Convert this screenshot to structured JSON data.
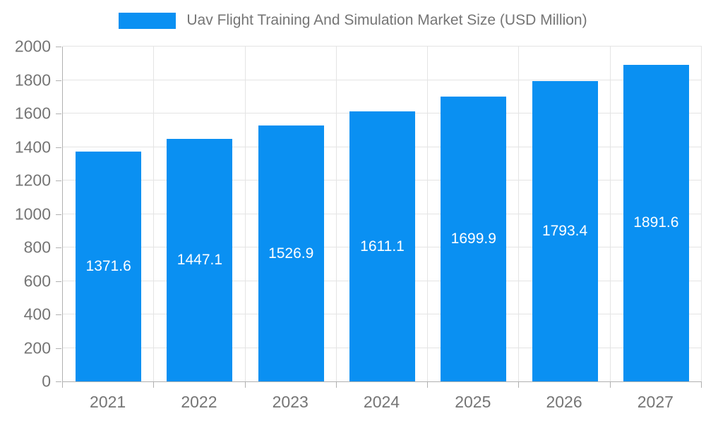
{
  "legend": {
    "label": "Uav Flight Training And Simulation Market Size (USD Million)"
  },
  "chart_data": {
    "type": "bar",
    "title": "Uav Flight Training And Simulation Market Size (USD Million)",
    "categories": [
      "2021",
      "2022",
      "2023",
      "2024",
      "2025",
      "2026",
      "2027"
    ],
    "series": [
      {
        "name": "Uav Flight Training And Simulation Market Size (USD Million)",
        "values": [
          1371.6,
          1447.1,
          1526.9,
          1611.1,
          1699.9,
          1793.4,
          1891.6
        ]
      }
    ],
    "value_labels": [
      "1371.6",
      "1447.1",
      "1526.9",
      "1611.1",
      "1699.9",
      "1793.4",
      "1891.6"
    ],
    "xlabel": "",
    "ylabel": "",
    "ylim": [
      0,
      2000
    ],
    "ytick_step": 200,
    "yticks": [
      0,
      200,
      400,
      600,
      800,
      1000,
      1200,
      1400,
      1600,
      1800,
      2000
    ],
    "grid": true,
    "legend_position": "top"
  },
  "colors": {
    "bar": "#0a90f2",
    "grid": "#e4e4e4",
    "axis": "#b0b0b0",
    "text": "#757575",
    "bar_label": "#ffffff",
    "background": "#ffffff"
  }
}
